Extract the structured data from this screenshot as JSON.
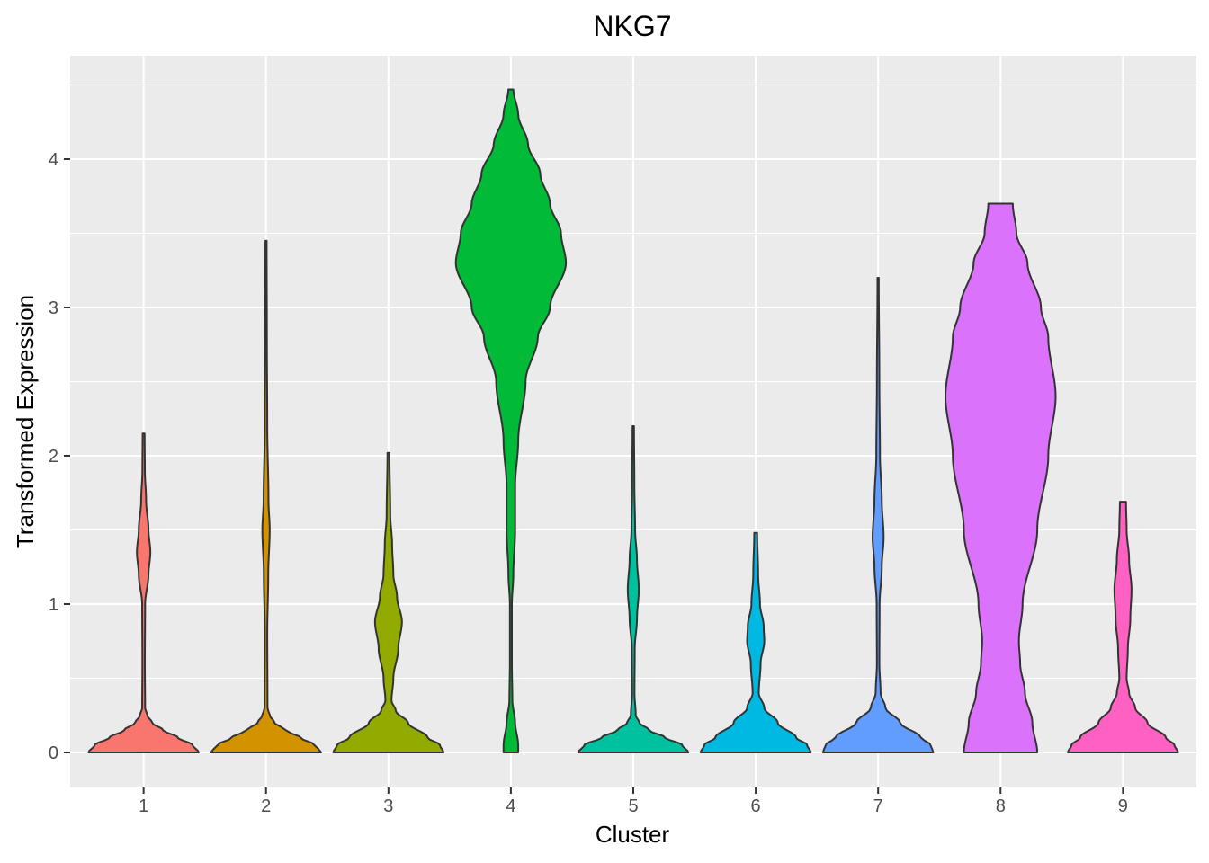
{
  "chart_data": {
    "type": "violin",
    "title": "NKG7",
    "xlabel": "Cluster",
    "ylabel": "Transformed Expression",
    "categories": [
      "1",
      "2",
      "3",
      "4",
      "5",
      "6",
      "7",
      "8",
      "9"
    ],
    "ylim": [
      -0.22,
      4.7
    ],
    "yticks": [
      0,
      1,
      2,
      3,
      4
    ],
    "grid": true,
    "legend": "none",
    "colors": [
      "#F8766D",
      "#D39200",
      "#93AA00",
      "#00BA38",
      "#00C19F",
      "#00B9E3",
      "#619CFF",
      "#DB72FB",
      "#FF61C3"
    ],
    "outline_color": "#333333",
    "panel_background": "#EBEBEB",
    "series": [
      {
        "category": "1",
        "max": 2.15,
        "density": [
          [
            0,
            0.45
          ],
          [
            0.05,
            0.4
          ],
          [
            0.1,
            0.28
          ],
          [
            0.15,
            0.16
          ],
          [
            0.2,
            0.07
          ],
          [
            0.25,
            0.03
          ],
          [
            0.3,
            0.012
          ],
          [
            0.6,
            0.01
          ],
          [
            1.0,
            0.012
          ],
          [
            1.2,
            0.04
          ],
          [
            1.35,
            0.055
          ],
          [
            1.5,
            0.04
          ],
          [
            1.7,
            0.02
          ],
          [
            1.9,
            0.01
          ],
          [
            2.15,
            0.008
          ]
        ]
      },
      {
        "category": "2",
        "max": 3.45,
        "density": [
          [
            0,
            0.45
          ],
          [
            0.05,
            0.4
          ],
          [
            0.1,
            0.28
          ],
          [
            0.15,
            0.16
          ],
          [
            0.2,
            0.07
          ],
          [
            0.25,
            0.03
          ],
          [
            0.3,
            0.012
          ],
          [
            0.8,
            0.01
          ],
          [
            1.2,
            0.018
          ],
          [
            1.5,
            0.03
          ],
          [
            1.7,
            0.02
          ],
          [
            2.2,
            0.01
          ],
          [
            2.8,
            0.007
          ],
          [
            3.45,
            0.005
          ]
        ]
      },
      {
        "category": "3",
        "max": 2.02,
        "density": [
          [
            0,
            0.45
          ],
          [
            0.05,
            0.42
          ],
          [
            0.1,
            0.32
          ],
          [
            0.2,
            0.16
          ],
          [
            0.28,
            0.06
          ],
          [
            0.35,
            0.025
          ],
          [
            0.5,
            0.04
          ],
          [
            0.7,
            0.08
          ],
          [
            0.88,
            0.11
          ],
          [
            1.05,
            0.07
          ],
          [
            1.2,
            0.04
          ],
          [
            1.4,
            0.03
          ],
          [
            1.6,
            0.015
          ],
          [
            2.02,
            0.008
          ]
        ]
      },
      {
        "category": "4",
        "max": 4.47,
        "density": [
          [
            0,
            0.06
          ],
          [
            0.05,
            0.06
          ],
          [
            0.2,
            0.035
          ],
          [
            0.35,
            0.012
          ],
          [
            0.6,
            0.008
          ],
          [
            1.0,
            0.008
          ],
          [
            1.2,
            0.02
          ],
          [
            1.5,
            0.035
          ],
          [
            1.8,
            0.035
          ],
          [
            2.1,
            0.06
          ],
          [
            2.5,
            0.12
          ],
          [
            2.8,
            0.22
          ],
          [
            3.0,
            0.32
          ],
          [
            3.3,
            0.45
          ],
          [
            3.5,
            0.41
          ],
          [
            3.7,
            0.32
          ],
          [
            3.9,
            0.24
          ],
          [
            4.1,
            0.14
          ],
          [
            4.3,
            0.06
          ],
          [
            4.47,
            0.02
          ]
        ]
      },
      {
        "category": "5",
        "max": 2.2,
        "density": [
          [
            0,
            0.45
          ],
          [
            0.05,
            0.4
          ],
          [
            0.1,
            0.26
          ],
          [
            0.15,
            0.13
          ],
          [
            0.2,
            0.05
          ],
          [
            0.25,
            0.02
          ],
          [
            0.4,
            0.01
          ],
          [
            0.7,
            0.012
          ],
          [
            0.9,
            0.03
          ],
          [
            1.1,
            0.045
          ],
          [
            1.3,
            0.03
          ],
          [
            1.5,
            0.015
          ],
          [
            1.8,
            0.009
          ],
          [
            2.2,
            0.006
          ]
        ]
      },
      {
        "category": "6",
        "max": 1.48,
        "density": [
          [
            0,
            0.45
          ],
          [
            0.05,
            0.42
          ],
          [
            0.1,
            0.33
          ],
          [
            0.2,
            0.18
          ],
          [
            0.3,
            0.07
          ],
          [
            0.4,
            0.025
          ],
          [
            0.6,
            0.04
          ],
          [
            0.75,
            0.07
          ],
          [
            0.85,
            0.065
          ],
          [
            1.0,
            0.035
          ],
          [
            1.2,
            0.02
          ],
          [
            1.48,
            0.012
          ]
        ]
      },
      {
        "category": "7",
        "max": 3.2,
        "density": [
          [
            0,
            0.45
          ],
          [
            0.05,
            0.43
          ],
          [
            0.1,
            0.35
          ],
          [
            0.2,
            0.18
          ],
          [
            0.3,
            0.06
          ],
          [
            0.4,
            0.02
          ],
          [
            0.6,
            0.01
          ],
          [
            1.0,
            0.012
          ],
          [
            1.25,
            0.03
          ],
          [
            1.45,
            0.045
          ],
          [
            1.7,
            0.03
          ],
          [
            2.0,
            0.015
          ],
          [
            2.5,
            0.01
          ],
          [
            3.2,
            0.005
          ]
        ]
      },
      {
        "category": "8",
        "max": 3.7,
        "density": [
          [
            0,
            0.3
          ],
          [
            0.2,
            0.26
          ],
          [
            0.4,
            0.2
          ],
          [
            0.6,
            0.16
          ],
          [
            0.75,
            0.15
          ],
          [
            1.0,
            0.18
          ],
          [
            1.5,
            0.3
          ],
          [
            2.0,
            0.39
          ],
          [
            2.4,
            0.45
          ],
          [
            2.8,
            0.39
          ],
          [
            3.0,
            0.33
          ],
          [
            3.3,
            0.22
          ],
          [
            3.5,
            0.13
          ],
          [
            3.7,
            0.1
          ]
        ]
      },
      {
        "category": "9",
        "max": 1.69,
        "density": [
          [
            0,
            0.45
          ],
          [
            0.05,
            0.42
          ],
          [
            0.1,
            0.35
          ],
          [
            0.2,
            0.2
          ],
          [
            0.3,
            0.1
          ],
          [
            0.4,
            0.05
          ],
          [
            0.5,
            0.03
          ],
          [
            0.7,
            0.04
          ],
          [
            0.9,
            0.06
          ],
          [
            1.1,
            0.07
          ],
          [
            1.3,
            0.05
          ],
          [
            1.5,
            0.03
          ],
          [
            1.69,
            0.025
          ]
        ]
      }
    ]
  }
}
